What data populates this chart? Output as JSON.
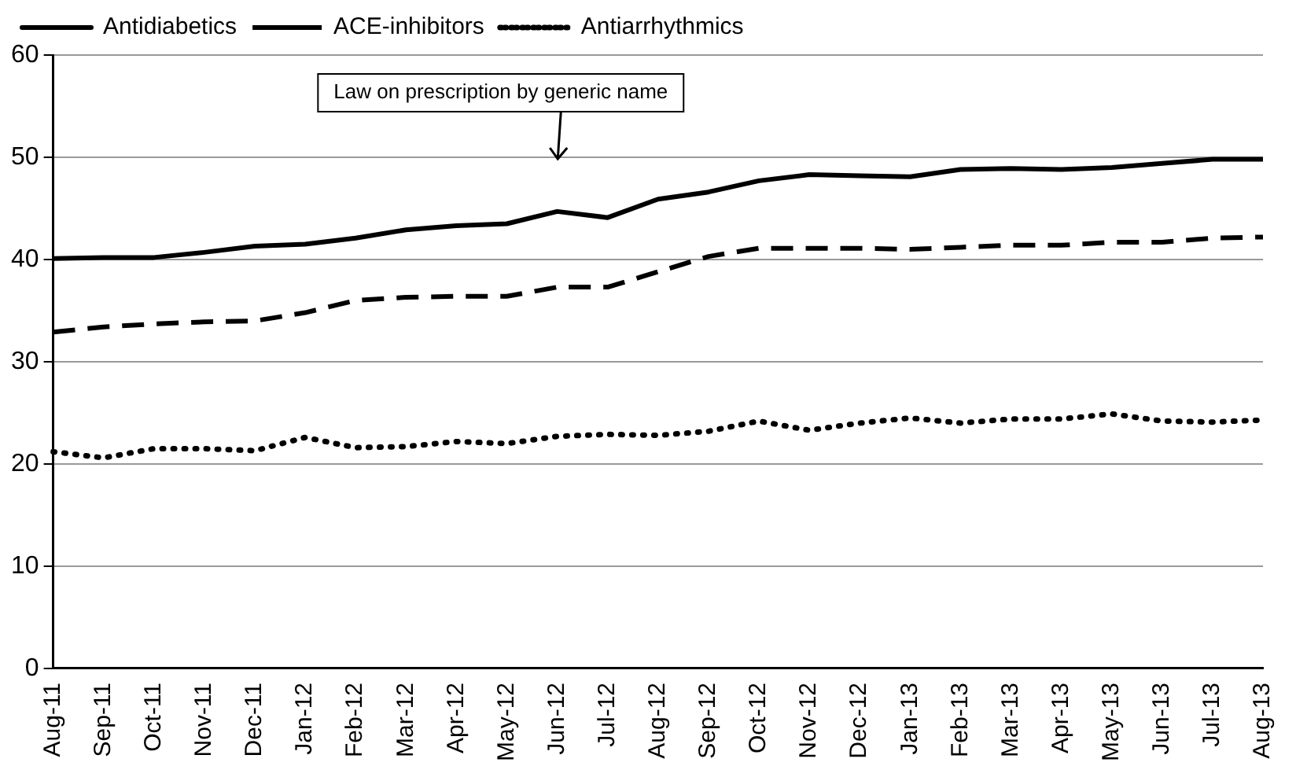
{
  "chart_data": {
    "type": "line",
    "categories": [
      "Aug-11",
      "Sep-11",
      "Oct-11",
      "Nov-11",
      "Dec-11",
      "Jan-12",
      "Feb-12",
      "Mar-12",
      "Apr-12",
      "May-12",
      "Jun-12",
      "Jul-12",
      "Aug-12",
      "Sep-12",
      "Oct-12",
      "Nov-12",
      "Dec-12",
      "Jan-13",
      "Feb-13",
      "Mar-13",
      "Apr-13",
      "May-13",
      "Jun-13",
      "Jul-13",
      "Aug-13"
    ],
    "series": [
      {
        "name": "Antidiabetics",
        "color": "#000000",
        "line_style": "solid",
        "values": [
          40.1,
          40.2,
          40.2,
          40.7,
          41.3,
          41.5,
          42.1,
          42.9,
          43.3,
          43.5,
          44.7,
          44.1,
          45.9,
          46.6,
          47.7,
          48.3,
          48.2,
          48.1,
          48.8,
          48.9,
          48.8,
          49.0,
          49.4,
          49.8,
          49.8
        ]
      },
      {
        "name": "ACE-inhibitors",
        "color": "#000000",
        "line_style": "dashed",
        "values": [
          32.9,
          33.4,
          33.7,
          33.9,
          34.0,
          34.8,
          36.0,
          36.3,
          36.4,
          36.4,
          37.3,
          37.3,
          38.8,
          40.3,
          41.1,
          41.1,
          41.1,
          41.0,
          41.2,
          41.4,
          41.4,
          41.7,
          41.7,
          42.1,
          42.2
        ]
      },
      {
        "name": "Antiarrhythmics",
        "color": "#000000",
        "line_style": "dotted",
        "values": [
          21.2,
          20.6,
          21.5,
          21.5,
          21.3,
          22.6,
          21.6,
          21.7,
          22.2,
          22.0,
          22.7,
          22.9,
          22.8,
          23.2,
          24.2,
          23.3,
          24.0,
          24.5,
          24.0,
          24.4,
          24.4,
          24.9,
          24.2,
          24.1,
          24.3
        ]
      }
    ],
    "ylim": [
      0,
      60
    ],
    "yticks": [
      0,
      10,
      20,
      30,
      40,
      50,
      60
    ],
    "grid": "y",
    "legend": "top",
    "marker": "none",
    "annotations": [
      "Law on prescription by generic name"
    ]
  }
}
